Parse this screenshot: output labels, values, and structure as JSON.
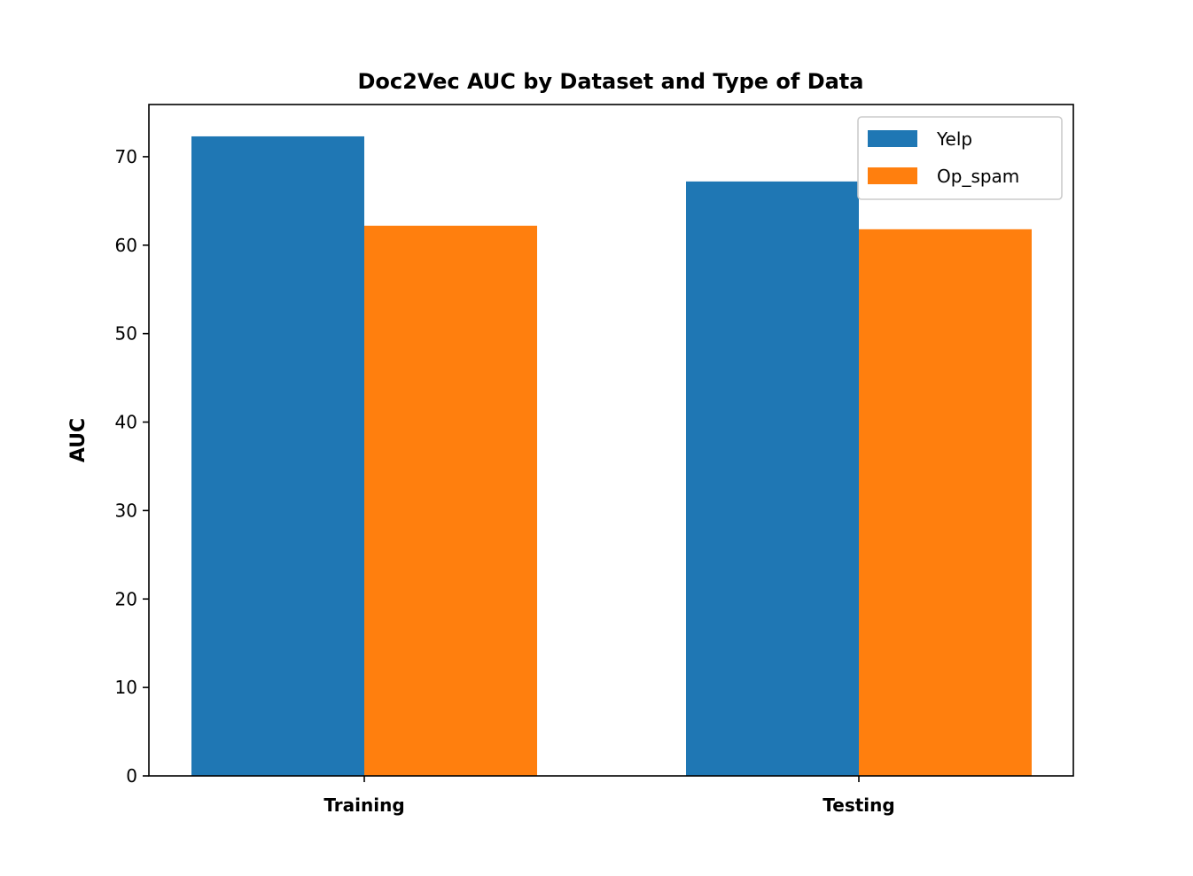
{
  "chart_data": {
    "type": "bar",
    "title": "Doc2Vec AUC by Dataset and Type of Data",
    "xlabel": "",
    "ylabel": "AUC",
    "categories": [
      "Training",
      "Testing"
    ],
    "series": [
      {
        "name": "Yelp",
        "values": [
          72.3,
          67.2
        ],
        "color": "#1f77b4"
      },
      {
        "name": "Op_spam",
        "values": [
          62.2,
          61.8
        ],
        "color": "#ff7f0e"
      }
    ],
    "ylim": [
      0,
      75.9
    ],
    "yticks": [
      0,
      10,
      20,
      30,
      40,
      50,
      60,
      70
    ],
    "ytick_labels": [
      "0",
      "10",
      "20",
      "30",
      "40",
      "50",
      "60",
      "70"
    ],
    "grid": false,
    "legend_position": "top-right"
  }
}
